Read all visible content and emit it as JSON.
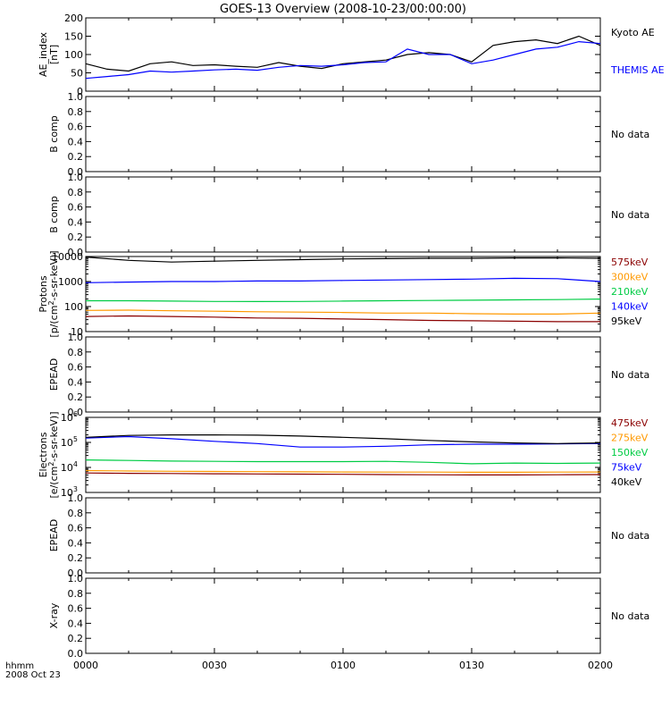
{
  "title": "GOES-13 Overview (2008-10-23/00:00:00)",
  "time_axis": {
    "ticks": [
      "0000",
      "0030",
      "0100",
      "0130",
      "0200"
    ],
    "unit_label": "hhmm",
    "date_label": "2008 Oct 23"
  },
  "chart_data": [
    {
      "type": "line",
      "ylabel": "AE_index [nT]",
      "ylim": [
        0,
        200
      ],
      "yticks": [
        "0",
        "50",
        "100",
        "150",
        "200"
      ],
      "x": [
        "00:00",
        "00:05",
        "00:10",
        "00:15",
        "00:20",
        "00:25",
        "00:30",
        "00:35",
        "00:40",
        "00:45",
        "00:50",
        "00:55",
        "01:00",
        "01:05",
        "01:10",
        "01:15",
        "01:20",
        "01:25",
        "01:30",
        "01:35",
        "01:40",
        "01:45",
        "01:50",
        "01:55",
        "02:00"
      ],
      "series": [
        {
          "name": "Kyoto AE",
          "color": "#000000",
          "values": [
            75,
            60,
            55,
            75,
            80,
            70,
            72,
            68,
            65,
            78,
            68,
            62,
            75,
            80,
            85,
            100,
            105,
            100,
            80,
            125,
            135,
            140,
            130,
            150,
            125
          ]
        },
        {
          "name": "THEMIS AE",
          "color": "#0000ff",
          "values": [
            35,
            40,
            45,
            55,
            52,
            55,
            58,
            60,
            57,
            65,
            70,
            68,
            72,
            78,
            80,
            115,
            100,
            100,
            75,
            85,
            100,
            115,
            120,
            135,
            130
          ]
        }
      ],
      "legend": "right"
    },
    {
      "type": "line",
      "ylabel": "B comp",
      "ylim": [
        0,
        1
      ],
      "yticks": [
        "0.0",
        "0.2",
        "0.4",
        "0.6",
        "0.8",
        "1.0"
      ],
      "note": "No data"
    },
    {
      "type": "line",
      "ylabel": "B comp",
      "ylim": [
        0,
        1
      ],
      "yticks": [
        "0.0",
        "0.2",
        "0.4",
        "0.6",
        "0.8",
        "1.0"
      ],
      "note": "No data"
    },
    {
      "type": "line",
      "log_scale": true,
      "ylabel": "Protons [p/(cm2-s-sr-keV)]",
      "ylim": [
        10,
        10000
      ],
      "yticks": [
        "10",
        "100",
        "1000",
        "10000"
      ],
      "x": [
        "00:00",
        "00:10",
        "00:20",
        "00:30",
        "00:40",
        "00:50",
        "01:00",
        "01:10",
        "01:20",
        "01:30",
        "01:40",
        "01:50",
        "02:00"
      ],
      "series": [
        {
          "name": "575keV",
          "color": "#8b0000",
          "values": [
            40,
            42,
            40,
            38,
            35,
            34,
            32,
            30,
            28,
            27,
            26,
            25,
            25
          ]
        },
        {
          "name": "300keV",
          "color": "#ff9900",
          "values": [
            70,
            72,
            68,
            65,
            62,
            60,
            58,
            55,
            55,
            52,
            50,
            50,
            55
          ]
        },
        {
          "name": "210keV",
          "color": "#00cc44",
          "values": [
            170,
            170,
            165,
            160,
            158,
            160,
            165,
            170,
            175,
            180,
            185,
            190,
            200
          ]
        },
        {
          "name": "140keV",
          "color": "#0000ff",
          "values": [
            900,
            950,
            1000,
            1000,
            1050,
            1050,
            1100,
            1150,
            1200,
            1250,
            1350,
            1300,
            1000
          ]
        },
        {
          "name": "95keV",
          "color": "#000000",
          "values": [
            9500,
            7000,
            6000,
            6500,
            7000,
            7500,
            8000,
            8200,
            8500,
            8500,
            8800,
            8800,
            8500
          ]
        }
      ],
      "legend": "right"
    },
    {
      "type": "line",
      "ylabel": "EPEAD",
      "ylim": [
        0,
        1
      ],
      "yticks": [
        "0.0",
        "0.2",
        "0.4",
        "0.6",
        "0.8",
        "1.0"
      ],
      "note": "No data"
    },
    {
      "type": "line",
      "log_scale": true,
      "ylabel": "Electrons [e/(cm2-s-sr-keV)]",
      "ylim": [
        1000,
        1000000
      ],
      "yticks": [
        "10",
        "10",
        "10",
        "10"
      ],
      "yticks_exp": [
        "3",
        "4",
        "5",
        "6"
      ],
      "x": [
        "00:00",
        "00:10",
        "00:20",
        "00:30",
        "00:40",
        "00:50",
        "01:00",
        "01:10",
        "01:20",
        "01:30",
        "01:40",
        "01:50",
        "02:00"
      ],
      "series": [
        {
          "name": "475keV",
          "color": "#8b0000",
          "values": [
            6000,
            5800,
            5700,
            5600,
            5500,
            5400,
            5300,
            5200,
            5100,
            5000,
            5000,
            5100,
            5200
          ]
        },
        {
          "name": "275keV",
          "color": "#ff9900",
          "values": [
            7500,
            7200,
            7000,
            6900,
            6800,
            6700,
            6600,
            6500,
            6500,
            6400,
            6400,
            6500,
            6600
          ]
        },
        {
          "name": "150keV",
          "color": "#00cc44",
          "values": [
            20000,
            19000,
            18000,
            17500,
            17000,
            17000,
            17000,
            17500,
            16000,
            14000,
            15000,
            14500,
            15000
          ]
        },
        {
          "name": "75keV",
          "color": "#0000ff",
          "values": [
            150000,
            170000,
            140000,
            110000,
            90000,
            65000,
            65000,
            70000,
            80000,
            85000,
            85000,
            88000,
            90000
          ]
        },
        {
          "name": "40keV",
          "color": "#000000",
          "values": [
            160000,
            190000,
            200000,
            200000,
            195000,
            180000,
            160000,
            140000,
            120000,
            105000,
            95000,
            90000,
            95000
          ]
        }
      ],
      "legend": "right"
    },
    {
      "type": "line",
      "ylabel": "EPEAD",
      "ylim": [
        0,
        1
      ],
      "yticks": [
        "0.0",
        "0.2",
        "0.4",
        "0.6",
        "0.8",
        "1.0"
      ],
      "note": "No data"
    },
    {
      "type": "line",
      "ylabel": "X-ray",
      "ylim": [
        0,
        1
      ],
      "yticks": [
        "0.0",
        "0.2",
        "0.4",
        "0.6",
        "0.8",
        "1.0"
      ],
      "note": "No data"
    }
  ]
}
